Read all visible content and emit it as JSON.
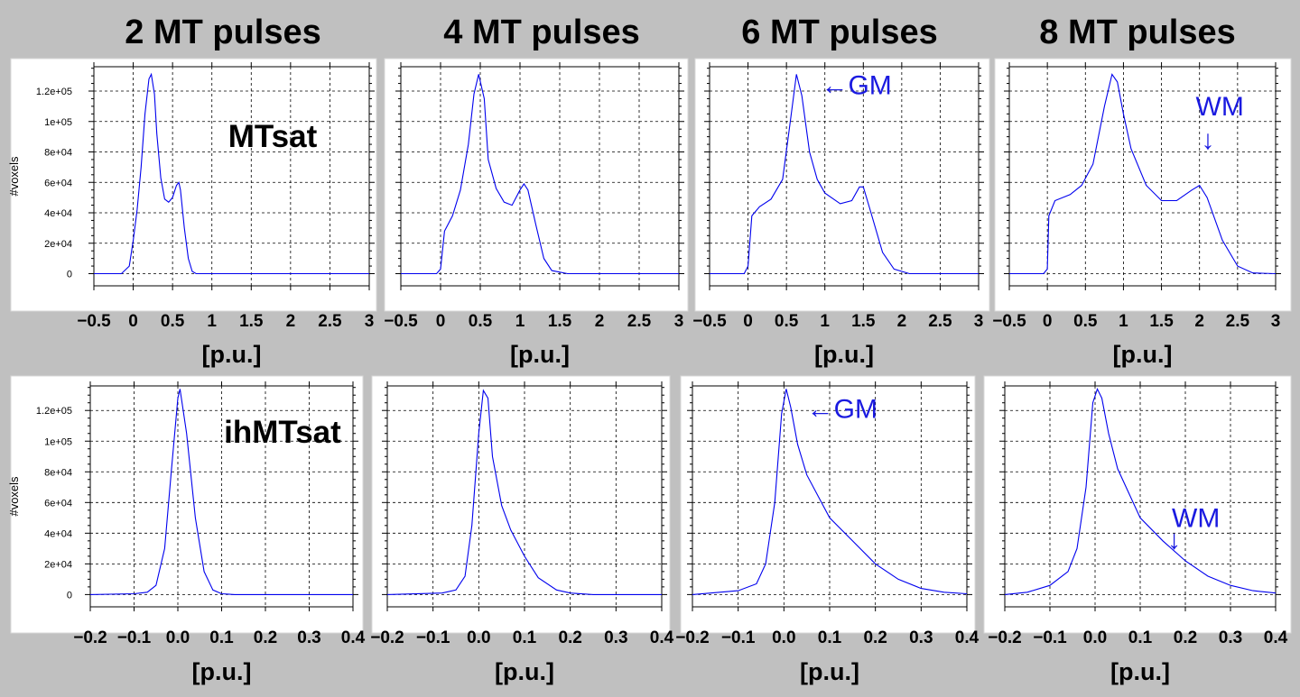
{
  "colors": {
    "background": "#c0c0c0",
    "panel": "#ffffff",
    "series": "#0000ee",
    "annotation": "#1a1ae0"
  },
  "column_titles": [
    "2 MT pulses",
    "4 MT pulses",
    "6 MT pulses",
    "8 MT pulses"
  ],
  "chart_data": [
    {
      "type": "line",
      "row_label": "MTsat",
      "xlabel": "[p.u.]",
      "ylabel": "#voxels",
      "xlim": [
        -0.5,
        3
      ],
      "ylim": [
        -8000,
        136000
      ],
      "grid": true,
      "x_ticks": [
        -0.5,
        0,
        0.5,
        1,
        1.5,
        2,
        2.5,
        3
      ],
      "x_tick_labels": [
        "−0.5",
        "0",
        "0.5",
        "1",
        "1.5",
        "2",
        "2.5",
        "3"
      ],
      "y_ticks": [
        0,
        20000,
        40000,
        60000,
        80000,
        100000,
        120000
      ],
      "y_tick_labels": [
        "0",
        "2e+04",
        "4e+04",
        "6e+04",
        "8e+04",
        "1e+05",
        "1.2e+05"
      ],
      "panels": [
        {
          "column": "2 MT pulses",
          "x": [
            -0.5,
            -0.15,
            -0.05,
            0.0,
            0.05,
            0.1,
            0.15,
            0.2,
            0.23,
            0.27,
            0.3,
            0.35,
            0.4,
            0.45,
            0.5,
            0.55,
            0.58,
            0.6,
            0.65,
            0.7,
            0.75,
            0.8,
            1.0,
            3.0
          ],
          "y": [
            0,
            0,
            5000,
            22000,
            42000,
            70000,
            105000,
            128000,
            131000,
            118000,
            92000,
            63000,
            49000,
            47000,
            50000,
            58000,
            60000,
            55000,
            30000,
            10000,
            1500,
            0,
            0,
            0
          ]
        },
        {
          "column": "4 MT pulses",
          "x": [
            -0.5,
            -0.05,
            0.0,
            0.05,
            0.15,
            0.25,
            0.35,
            0.42,
            0.48,
            0.55,
            0.6,
            0.7,
            0.8,
            0.9,
            1.0,
            1.05,
            1.1,
            1.2,
            1.3,
            1.4,
            1.6,
            3.0
          ],
          "y": [
            0,
            0,
            3000,
            28000,
            38000,
            55000,
            85000,
            118000,
            131000,
            115000,
            75000,
            56000,
            47000,
            45000,
            55000,
            59000,
            55000,
            32000,
            10000,
            2000,
            0,
            0
          ],
          "annotations": []
        },
        {
          "column": "6 MT pulses",
          "x": [
            -0.5,
            -0.05,
            0.0,
            0.05,
            0.15,
            0.3,
            0.45,
            0.55,
            0.63,
            0.7,
            0.8,
            0.9,
            1.0,
            1.2,
            1.35,
            1.45,
            1.5,
            1.6,
            1.75,
            1.9,
            2.1,
            3.0
          ],
          "y": [
            0,
            0,
            5000,
            38000,
            44000,
            49000,
            62000,
            100000,
            131000,
            117000,
            80000,
            62000,
            53000,
            46000,
            48000,
            57000,
            57000,
            40000,
            14000,
            3000,
            0,
            0
          ],
          "annotations": [
            {
              "text": "←GM",
              "x": 0.95,
              "y": 118000
            }
          ]
        },
        {
          "column": "8 MT pulses",
          "x": [
            -0.5,
            -0.05,
            0.0,
            0.02,
            0.1,
            0.3,
            0.45,
            0.6,
            0.75,
            0.85,
            0.92,
            1.0,
            1.1,
            1.3,
            1.5,
            1.7,
            1.9,
            2.0,
            2.1,
            2.3,
            2.5,
            2.7,
            3.0
          ],
          "y": [
            0,
            0,
            3000,
            38000,
            48000,
            52000,
            58000,
            72000,
            110000,
            131000,
            126000,
            105000,
            82000,
            58000,
            48000,
            48000,
            55000,
            58000,
            50000,
            22000,
            5000,
            500,
            0
          ],
          "annotations": [
            {
              "text": "WM",
              "x": 1.95,
              "y": 104000
            },
            {
              "text": "↓",
              "x": 2.02,
              "y": 82000
            }
          ]
        }
      ]
    },
    {
      "type": "line",
      "row_label": "ihMTsat",
      "xlabel": "[p.u.]",
      "ylabel": "#voxels",
      "xlim": [
        -0.2,
        0.4
      ],
      "ylim": [
        -8000,
        136000
      ],
      "grid": true,
      "x_ticks": [
        -0.2,
        -0.1,
        0.0,
        0.1,
        0.2,
        0.3,
        0.4
      ],
      "x_tick_labels": [
        "−0.2",
        "−0.1",
        "0.0",
        "0.1",
        "0.2",
        "0.3",
        "0.4"
      ],
      "y_ticks": [
        0,
        20000,
        40000,
        60000,
        80000,
        100000,
        120000
      ],
      "y_tick_labels": [
        "0",
        "2e+04",
        "4e+04",
        "6e+04",
        "8e+04",
        "1e+05",
        "1.2e+05"
      ],
      "panels": [
        {
          "column": "2 MT pulses",
          "x": [
            -0.2,
            -0.1,
            -0.07,
            -0.05,
            -0.03,
            -0.015,
            0.0,
            0.005,
            0.02,
            0.04,
            0.06,
            0.08,
            0.1,
            0.13,
            0.4
          ],
          "y": [
            0,
            500,
            1500,
            6000,
            30000,
            80000,
            128000,
            134000,
            105000,
            50000,
            15000,
            3000,
            500,
            0,
            0
          ]
        },
        {
          "column": "4 MT pulses",
          "x": [
            -0.2,
            -0.08,
            -0.05,
            -0.03,
            -0.015,
            0.0,
            0.01,
            0.02,
            0.03,
            0.05,
            0.07,
            0.1,
            0.13,
            0.17,
            0.2,
            0.25,
            0.4
          ],
          "y": [
            0,
            1000,
            3000,
            12000,
            45000,
            105000,
            133000,
            128000,
            90000,
            58000,
            42000,
            25000,
            11000,
            3000,
            1000,
            0,
            0
          ],
          "annotations": []
        },
        {
          "column": "6 MT pulses",
          "x": [
            -0.2,
            -0.1,
            -0.06,
            -0.04,
            -0.02,
            -0.005,
            0.005,
            0.015,
            0.03,
            0.05,
            0.1,
            0.15,
            0.2,
            0.25,
            0.3,
            0.35,
            0.4
          ],
          "y": [
            0,
            2500,
            7000,
            20000,
            60000,
            118000,
            134000,
            122000,
            98000,
            78000,
            50000,
            35000,
            20000,
            10000,
            4000,
            1500,
            500
          ],
          "annotations": [
            {
              "text": "←GM",
              "x": 0.05,
              "y": 115000
            }
          ]
        },
        {
          "column": "8 MT pulses",
          "x": [
            -0.2,
            -0.15,
            -0.1,
            -0.06,
            -0.04,
            -0.02,
            -0.005,
            0.005,
            0.015,
            0.03,
            0.05,
            0.1,
            0.15,
            0.2,
            0.25,
            0.3,
            0.35,
            0.4
          ],
          "y": [
            0,
            1500,
            6000,
            15000,
            30000,
            70000,
            125000,
            134000,
            128000,
            105000,
            82000,
            50000,
            35000,
            22000,
            12000,
            6000,
            2500,
            1000
          ],
          "annotations": [
            {
              "text": "WM",
              "x": 0.17,
              "y": 44000
            },
            {
              "text": "↓",
              "x": 0.16,
              "y": 30000
            }
          ]
        }
      ]
    }
  ]
}
